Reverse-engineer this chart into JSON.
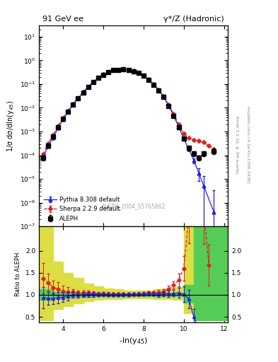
{
  "title_left": "91 GeV ee",
  "title_right": "γ*/Z (Hadronic)",
  "ylabel_main": "1/σ dσ/dln(y$_{45}$)",
  "ylabel_ratio": "Ratio to ALEPH",
  "xlabel": "-ln(y$_{45}$)",
  "watermark": "ALEPH_2004_S5765862",
  "side_label1": "mcplots.cern.ch [arXiv:1306.3436]",
  "side_label2": "Rivet 3.1.10, ≥ 3M events",
  "xlim": [
    2.8,
    12.2
  ],
  "ylim_main": [
    1e-07,
    30
  ],
  "ylim_ratio": [
    0.38,
    2.55
  ],
  "ratio_yticks": [
    0.5,
    1.0,
    1.5,
    2.0
  ],
  "aleph_x": [
    3.0,
    3.25,
    3.5,
    3.75,
    4.0,
    4.25,
    4.5,
    4.75,
    5.0,
    5.25,
    5.5,
    5.75,
    6.0,
    6.25,
    6.5,
    6.75,
    7.0,
    7.25,
    7.5,
    7.75,
    8.0,
    8.25,
    8.5,
    8.75,
    9.0,
    9.25,
    9.5,
    9.75,
    10.0,
    10.25,
    10.5,
    10.75,
    11.0,
    11.5
  ],
  "aleph_y": [
    8e-05,
    0.00025,
    0.0006,
    0.0015,
    0.0035,
    0.007,
    0.014,
    0.025,
    0.045,
    0.075,
    0.12,
    0.18,
    0.25,
    0.32,
    0.38,
    0.4,
    0.41,
    0.39,
    0.35,
    0.29,
    0.22,
    0.15,
    0.095,
    0.055,
    0.028,
    0.012,
    0.0045,
    0.0015,
    0.0005,
    0.0002,
    0.00012,
    8e-05,
    0.00012,
    0.00015
  ],
  "aleph_yerr": [
    2e-05,
    4e-05,
    8e-05,
    0.0002,
    0.0004,
    0.0007,
    0.001,
    0.0015,
    0.0025,
    0.004,
    0.006,
    0.008,
    0.01,
    0.012,
    0.015,
    0.015,
    0.015,
    0.015,
    0.012,
    0.01,
    0.008,
    0.006,
    0.004,
    0.003,
    0.0015,
    0.0008,
    0.0003,
    0.00015,
    8e-05,
    4e-05,
    3e-05,
    2e-05,
    3e-05,
    4e-05
  ],
  "pythia_x": [
    3.0,
    3.25,
    3.5,
    3.75,
    4.0,
    4.25,
    4.5,
    4.75,
    5.0,
    5.25,
    5.5,
    5.75,
    6.0,
    6.25,
    6.5,
    6.75,
    7.0,
    7.25,
    7.5,
    7.75,
    8.0,
    8.25,
    8.5,
    8.75,
    9.0,
    9.25,
    9.5,
    9.75,
    10.0,
    10.25,
    10.5,
    10.75,
    11.0,
    11.5
  ],
  "pythia_y": [
    7.5e-05,
    0.00023,
    0.00055,
    0.0014,
    0.0033,
    0.0068,
    0.014,
    0.025,
    0.045,
    0.076,
    0.121,
    0.181,
    0.252,
    0.322,
    0.382,
    0.403,
    0.413,
    0.393,
    0.354,
    0.294,
    0.224,
    0.154,
    0.097,
    0.0555,
    0.0288,
    0.0123,
    0.00465,
    0.00157,
    0.00051,
    0.00018,
    6e-05,
    1.8e-05,
    5e-06,
    4e-07
  ],
  "pythia_yerr": [
    5e-06,
    8e-06,
    1.2e-05,
    2.5e-05,
    4e-05,
    8e-05,
    0.00012,
    0.00018,
    0.00025,
    0.0004,
    0.0006,
    0.0008,
    0.0009,
    0.0011,
    0.0013,
    0.0014,
    0.0014,
    0.0014,
    0.0012,
    0.001,
    0.0008,
    0.0006,
    0.00045,
    0.0003,
    0.0002,
    0.00012,
    8e-05,
    5e-05,
    3e-05,
    2e-05,
    1.5e-05,
    1e-05,
    8e-06,
    3e-06
  ],
  "sherpa_x": [
    3.0,
    3.25,
    3.5,
    3.75,
    4.0,
    4.25,
    4.5,
    4.75,
    5.0,
    5.25,
    5.5,
    5.75,
    6.0,
    6.25,
    6.5,
    6.75,
    7.0,
    7.25,
    7.5,
    7.75,
    8.0,
    8.25,
    8.5,
    8.75,
    9.0,
    9.25,
    9.5,
    9.75,
    10.0,
    10.25,
    10.5,
    10.75,
    11.0,
    11.25,
    11.5
  ],
  "sherpa_y": [
    0.00011,
    0.00032,
    0.0007,
    0.0017,
    0.0038,
    0.0075,
    0.0148,
    0.026,
    0.047,
    0.078,
    0.124,
    0.184,
    0.256,
    0.326,
    0.384,
    0.406,
    0.416,
    0.396,
    0.356,
    0.296,
    0.226,
    0.156,
    0.099,
    0.058,
    0.03,
    0.0135,
    0.0055,
    0.002,
    0.0008,
    0.00055,
    0.00045,
    0.0004,
    0.00035,
    0.00025,
    0.00018
  ],
  "sherpa_yerr": [
    5e-06,
    8e-06,
    1.5e-05,
    3e-05,
    5e-05,
    0.0001,
    0.00015,
    0.0002,
    0.0003,
    0.0005,
    0.0007,
    0.0009,
    0.001,
    0.0012,
    0.0014,
    0.0015,
    0.0015,
    0.0015,
    0.0013,
    0.0011,
    0.0009,
    0.0007,
    0.0005,
    0.00035,
    0.00025,
    0.00015,
    0.0001,
    6e-05,
    5e-05,
    4e-05,
    3.5e-05,
    3e-05,
    2.5e-05,
    2e-05,
    1.5e-05
  ],
  "green_band_edges": [
    2.8,
    3.5,
    4.0,
    4.5,
    5.0,
    5.5,
    6.0,
    6.5,
    7.0,
    7.5,
    8.0,
    8.5,
    9.0,
    9.5,
    10.0,
    10.5,
    11.0,
    12.2
  ],
  "green_band_lo": [
    0.88,
    0.93,
    0.94,
    0.95,
    0.95,
    0.96,
    0.965,
    0.965,
    0.965,
    0.965,
    0.965,
    0.965,
    0.965,
    0.965,
    0.82,
    0.42,
    0.42,
    0.42
  ],
  "green_band_hi": [
    1.12,
    1.07,
    1.06,
    1.05,
    1.05,
    1.04,
    1.035,
    1.035,
    1.035,
    1.035,
    1.035,
    1.035,
    1.035,
    1.035,
    1.22,
    2.55,
    2.55,
    2.55
  ],
  "yellow_band_edges": [
    2.8,
    3.5,
    4.0,
    4.5,
    5.0,
    5.5,
    6.0,
    6.5,
    7.0,
    7.5,
    8.0,
    8.5,
    9.0,
    9.5,
    10.0,
    10.5,
    11.0,
    12.2
  ],
  "yellow_band_lo": [
    0.42,
    0.68,
    0.75,
    0.8,
    0.85,
    0.88,
    0.9,
    0.91,
    0.92,
    0.92,
    0.92,
    0.91,
    0.9,
    0.88,
    0.58,
    0.42,
    0.42,
    0.42
  ],
  "yellow_band_hi": [
    2.55,
    1.75,
    1.5,
    1.38,
    1.25,
    1.2,
    1.14,
    1.12,
    1.1,
    1.1,
    1.1,
    1.12,
    1.14,
    1.18,
    2.55,
    2.55,
    2.55,
    2.55
  ],
  "colors": {
    "aleph": "black",
    "pythia": "#2222dd",
    "sherpa": "#dd2222",
    "green_band": "#55cc55",
    "yellow_band": "#dddd44"
  }
}
